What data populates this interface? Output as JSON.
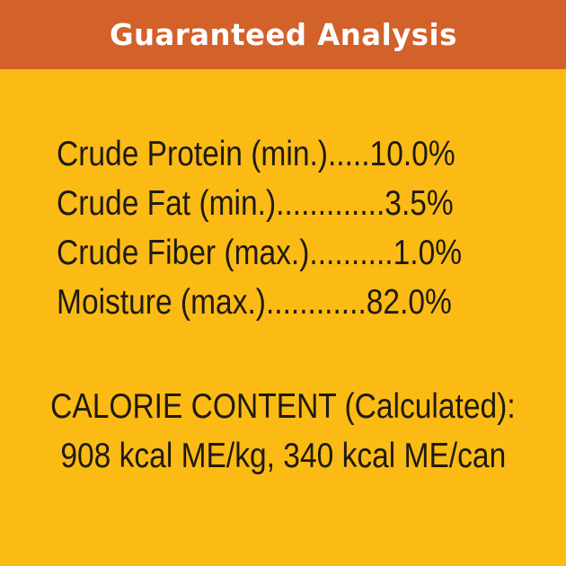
{
  "header": {
    "title": "Guaranteed Analysis"
  },
  "analysis": [
    "Crude Protein (min.).....10.0%",
    "Crude Fat (min.).............3.5%",
    "Crude Fiber (max.)..........1.0%",
    "Moisture (max.)............82.0%"
  ],
  "calorie": {
    "heading": "CALORIE CONTENT (Calculated):",
    "value": "908 kcal ME/kg, 340 kcal ME/can"
  },
  "colors": {
    "header": "#D2612A",
    "background": "#FBBB14",
    "text": "#1f1a12"
  }
}
